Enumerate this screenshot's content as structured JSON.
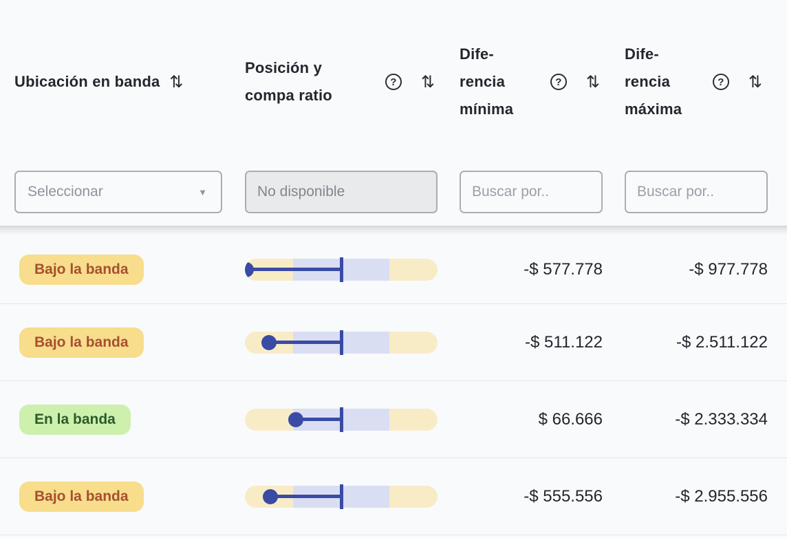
{
  "table": {
    "columns": [
      {
        "label": "Ubicación en banda",
        "has_help": false,
        "has_sort": true
      },
      {
        "label": "Posición y\ncompa ratio",
        "has_help": true,
        "has_sort": true
      },
      {
        "label": "Dife-\nrencia\nmínima",
        "has_help": true,
        "has_sort": true
      },
      {
        "label": "Dife-\nrencia\nmáxima",
        "has_help": true,
        "has_sort": true
      }
    ],
    "filters": {
      "band_location_select_value": "Seleccionar",
      "position_filter_placeholder": "No disponible",
      "min_diff_placeholder": "Buscar por..",
      "max_diff_placeholder": "Buscar por.."
    },
    "rows": [
      {
        "badge": {
          "label": "Bajo la banda",
          "variant": "yellow"
        },
        "band": {
          "dot_pct": 0.7,
          "mid_pct": 50
        },
        "min": "-$ 577.778",
        "max": "-$ 977.778"
      },
      {
        "badge": {
          "label": "Bajo la banda",
          "variant": "yellow"
        },
        "band": {
          "dot_pct": 12.5,
          "mid_pct": 50
        },
        "min": "-$ 511.122",
        "max": "-$ 2.511.122"
      },
      {
        "badge": {
          "label": "En la banda",
          "variant": "green"
        },
        "band": {
          "dot_pct": 26.4,
          "mid_pct": 50
        },
        "min": "$ 66.666",
        "max": "-$ 2.333.334"
      },
      {
        "badge": {
          "label": "Bajo la banda",
          "variant": "yellow"
        },
        "band": {
          "dot_pct": 13.2,
          "mid_pct": 50
        },
        "min": "-$ 555.556",
        "max": "-$ 2.955.556"
      }
    ]
  },
  "icons": {
    "sort": "⇅",
    "help": "?",
    "dropdown_caret": "▼"
  },
  "colors": {
    "accent_blue": "#3a4ba5",
    "band_yellow": "#f8ecc7",
    "band_lavender": "#dadef3",
    "badge_yellow_bg": "#f7dd8c",
    "badge_yellow_text": "#a65030",
    "badge_green_bg": "#cdf0ad",
    "badge_green_text": "#2b5b2b",
    "page_bg": "#f9fafc"
  }
}
